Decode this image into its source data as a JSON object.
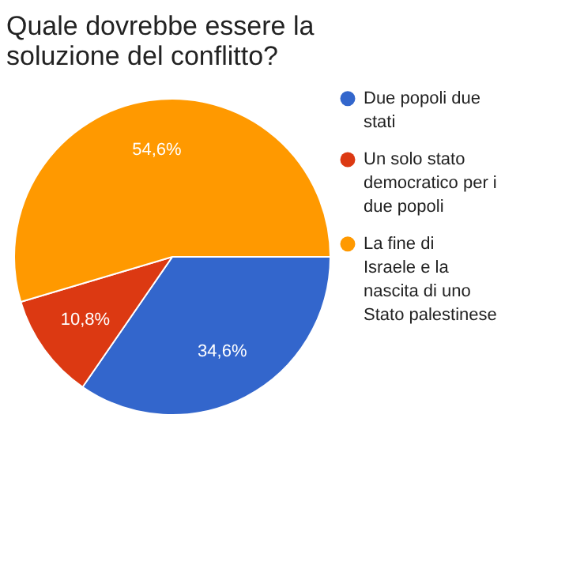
{
  "chart_data": {
    "type": "pie",
    "title": "Quale dovrebbe essere la soluzione del conflitto?",
    "categories": [
      "Due popoli due stati",
      "Un solo stato democratico per i due popoli",
      "La fine di Israele e la nascita di uno Stato palestinese"
    ],
    "values": [
      34.6,
      10.8,
      54.6
    ],
    "colors": [
      "#3366cc",
      "#dc3912",
      "#ff9900"
    ],
    "value_labels": [
      "34,6%",
      "10,8%",
      "54,6%"
    ],
    "legend": "right"
  }
}
